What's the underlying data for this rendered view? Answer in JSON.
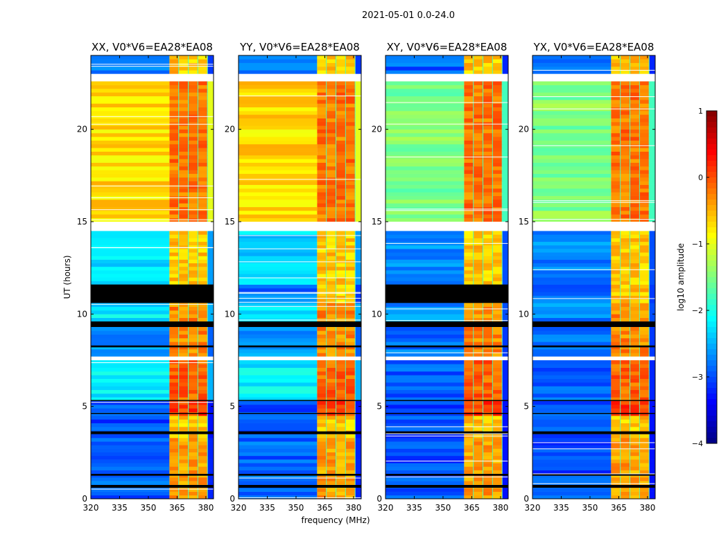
{
  "chart_data": {
    "type": "heatmap",
    "title": "2021-05-01 0.0-24.0",
    "xlabel": "frequency (MHz)",
    "ylabel": "UT (hours)",
    "xlim": [
      320,
      384
    ],
    "ylim": [
      0,
      24
    ],
    "xticks": [
      "320",
      "335",
      "350",
      "365",
      "380"
    ],
    "yticks": [
      "0",
      "5",
      "10",
      "15",
      "20"
    ],
    "panels": [
      {
        "title": "XX, V0*V6=EA28*EA08",
        "kind": "parallel"
      },
      {
        "title": "YY, V0*V6=EA28*EA08",
        "kind": "parallel"
      },
      {
        "title": "XY, V0*V6=EA28*EA08",
        "kind": "cross"
      },
      {
        "title": "YX, V0*V6=EA28*EA08",
        "kind": "cross"
      }
    ],
    "band_MHz": [
      361,
      381
    ],
    "time_blocks": [
      {
        "t": [
          0,
          3.3
        ],
        "parallel": -2.9,
        "cross": -3.0,
        "band": -0.4
      },
      {
        "t": [
          3.3,
          4.5
        ],
        "parallel": -3.0,
        "cross": -3.0,
        "band": -0.6
      },
      {
        "t": [
          4.5,
          5.3
        ],
        "parallel": -3.0,
        "cross": -3.0,
        "band": 0.1
      },
      {
        "t": [
          5.3,
          7.5
        ],
        "parallel": -2.2,
        "cross": -2.9,
        "band": -0.1
      },
      {
        "t": [
          7.7,
          9.3
        ],
        "parallel": -2.6,
        "cross": -2.8,
        "band": -0.3
      },
      {
        "t": [
          9.6,
          10.6
        ],
        "parallel": -2.2,
        "cross": -2.7,
        "band": -0.3
      },
      {
        "t": [
          10.6,
          11.6
        ],
        "parallel": -2.8,
        "cross": -2.8,
        "band": -0.6
      },
      {
        "t": [
          11.6,
          14.5
        ],
        "parallel": -2.3,
        "cross": -2.7,
        "band": -0.6
      },
      {
        "t": [
          15.0,
          22.6
        ],
        "parallel": -0.7,
        "cross": -1.5,
        "band": -0.2
      },
      {
        "t": [
          23.0,
          24.0
        ],
        "parallel": -2.8,
        "cross": -2.9,
        "band": -0.6
      }
    ],
    "flagged_hours": [
      [
        9.3,
        9.6
      ],
      [
        10.6,
        11.6
      ],
      [
        0.6,
        0.75
      ],
      [
        1.25,
        1.35
      ],
      [
        3.5,
        3.65
      ],
      [
        4.6,
        4.65
      ],
      [
        5.3,
        5.35
      ],
      [
        8.2,
        8.3
      ]
    ],
    "gap_hours": [
      [
        7.5,
        7.7
      ],
      [
        14.5,
        15.0
      ],
      [
        22.6,
        23.0
      ]
    ],
    "colorbar": {
      "label": "log10 amplitude",
      "range": [
        -4,
        1
      ],
      "ticks": [
        "1",
        "0",
        "−1",
        "−2",
        "−3",
        "−4"
      ],
      "colormap": "jet"
    }
  }
}
